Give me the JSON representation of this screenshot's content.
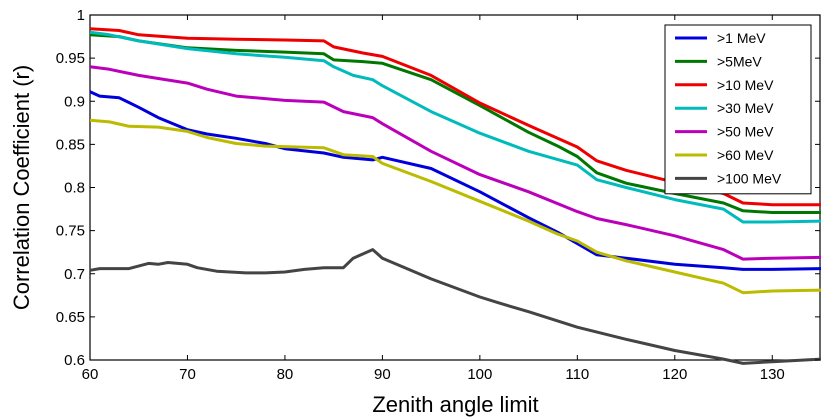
{
  "chart_data": {
    "type": "line",
    "title": "",
    "xlabel": "Zenith angle limit",
    "ylabel": "Correlation Coefficient (r)",
    "xlim": [
      60,
      135
    ],
    "ylim": [
      0.6,
      1
    ],
    "xticks": [
      60,
      70,
      80,
      90,
      100,
      110,
      120,
      130
    ],
    "yticks": [
      0.6,
      0.65,
      0.7,
      0.75,
      0.8,
      0.85,
      0.9,
      0.95,
      1
    ],
    "ytick_labels": [
      "0.6",
      "0.65",
      "0.7",
      "0.75",
      "0.8",
      "0.85",
      "0.9",
      "0.95",
      "1"
    ],
    "grid": false,
    "legend_position": "top-right",
    "series": [
      {
        "name": ">1 MeV",
        "color": "#0000dd",
        "points": [
          [
            60,
            0.911
          ],
          [
            61,
            0.906
          ],
          [
            63,
            0.904
          ],
          [
            65,
            0.893
          ],
          [
            67,
            0.881
          ],
          [
            70,
            0.867
          ],
          [
            72,
            0.862
          ],
          [
            75,
            0.857
          ],
          [
            78,
            0.851
          ],
          [
            80,
            0.845
          ],
          [
            84,
            0.84
          ],
          [
            86,
            0.835
          ],
          [
            89,
            0.832
          ],
          [
            90,
            0.835
          ],
          [
            95,
            0.822
          ],
          [
            100,
            0.795
          ],
          [
            105,
            0.765
          ],
          [
            108,
            0.748
          ],
          [
            112,
            0.722
          ],
          [
            115,
            0.718
          ],
          [
            120,
            0.711
          ],
          [
            125,
            0.707
          ],
          [
            127,
            0.705
          ],
          [
            130,
            0.705
          ],
          [
            135,
            0.706
          ]
        ]
      },
      {
        "name": ">5MeV",
        "color": "#007700",
        "points": [
          [
            60,
            0.977
          ],
          [
            63,
            0.975
          ],
          [
            65,
            0.97
          ],
          [
            70,
            0.962
          ],
          [
            75,
            0.959
          ],
          [
            80,
            0.957
          ],
          [
            84,
            0.955
          ],
          [
            85,
            0.948
          ],
          [
            88,
            0.946
          ],
          [
            90,
            0.944
          ],
          [
            95,
            0.925
          ],
          [
            100,
            0.895
          ],
          [
            105,
            0.864
          ],
          [
            108,
            0.848
          ],
          [
            110,
            0.836
          ],
          [
            112,
            0.817
          ],
          [
            115,
            0.805
          ],
          [
            120,
            0.793
          ],
          [
            125,
            0.782
          ],
          [
            127,
            0.773
          ],
          [
            130,
            0.771
          ],
          [
            135,
            0.771
          ]
        ]
      },
      {
        "name": ">10 MeV",
        "color": "#ee0000",
        "points": [
          [
            60,
            0.984
          ],
          [
            63,
            0.982
          ],
          [
            65,
            0.977
          ],
          [
            70,
            0.973
          ],
          [
            75,
            0.972
          ],
          [
            80,
            0.971
          ],
          [
            84,
            0.97
          ],
          [
            85,
            0.963
          ],
          [
            88,
            0.956
          ],
          [
            90,
            0.952
          ],
          [
            95,
            0.93
          ],
          [
            100,
            0.898
          ],
          [
            105,
            0.872
          ],
          [
            110,
            0.847
          ],
          [
            112,
            0.831
          ],
          [
            115,
            0.82
          ],
          [
            120,
            0.806
          ],
          [
            125,
            0.793
          ],
          [
            127,
            0.782
          ],
          [
            130,
            0.78
          ],
          [
            135,
            0.78
          ]
        ]
      },
      {
        "name": ">30 MeV",
        "color": "#00bbbb",
        "points": [
          [
            60,
            0.98
          ],
          [
            62,
            0.977
          ],
          [
            65,
            0.97
          ],
          [
            70,
            0.961
          ],
          [
            75,
            0.955
          ],
          [
            80,
            0.951
          ],
          [
            84,
            0.947
          ],
          [
            85,
            0.94
          ],
          [
            87,
            0.93
          ],
          [
            89,
            0.925
          ],
          [
            90,
            0.918
          ],
          [
            95,
            0.888
          ],
          [
            100,
            0.863
          ],
          [
            105,
            0.842
          ],
          [
            110,
            0.826
          ],
          [
            112,
            0.809
          ],
          [
            115,
            0.8
          ],
          [
            120,
            0.786
          ],
          [
            125,
            0.775
          ],
          [
            127,
            0.76
          ],
          [
            130,
            0.76
          ],
          [
            135,
            0.761
          ]
        ]
      },
      {
        "name": ">50 MeV",
        "color": "#bb00bb",
        "points": [
          [
            60,
            0.94
          ],
          [
            62,
            0.937
          ],
          [
            65,
            0.93
          ],
          [
            70,
            0.921
          ],
          [
            72,
            0.914
          ],
          [
            75,
            0.906
          ],
          [
            80,
            0.901
          ],
          [
            84,
            0.899
          ],
          [
            86,
            0.888
          ],
          [
            89,
            0.881
          ],
          [
            90,
            0.874
          ],
          [
            95,
            0.842
          ],
          [
            100,
            0.815
          ],
          [
            105,
            0.795
          ],
          [
            110,
            0.772
          ],
          [
            112,
            0.764
          ],
          [
            115,
            0.757
          ],
          [
            120,
            0.744
          ],
          [
            125,
            0.728
          ],
          [
            127,
            0.717
          ],
          [
            130,
            0.718
          ],
          [
            135,
            0.719
          ]
        ]
      },
      {
        "name": ">60 MeV",
        "color": "#bbbb00",
        "points": [
          [
            60,
            0.878
          ],
          [
            62,
            0.876
          ],
          [
            64,
            0.871
          ],
          [
            67,
            0.87
          ],
          [
            70,
            0.865
          ],
          [
            72,
            0.858
          ],
          [
            75,
            0.851
          ],
          [
            78,
            0.848
          ],
          [
            84,
            0.846
          ],
          [
            86,
            0.838
          ],
          [
            89,
            0.836
          ],
          [
            90,
            0.828
          ],
          [
            95,
            0.807
          ],
          [
            100,
            0.784
          ],
          [
            105,
            0.761
          ],
          [
            108,
            0.746
          ],
          [
            110,
            0.738
          ],
          [
            112,
            0.725
          ],
          [
            115,
            0.715
          ],
          [
            120,
            0.702
          ],
          [
            125,
            0.689
          ],
          [
            127,
            0.678
          ],
          [
            130,
            0.68
          ],
          [
            135,
            0.681
          ]
        ]
      },
      {
        "name": ">100 MeV",
        "color": "#444444",
        "points": [
          [
            60,
            0.704
          ],
          [
            61,
            0.706
          ],
          [
            64,
            0.706
          ],
          [
            66,
            0.712
          ],
          [
            67,
            0.711
          ],
          [
            68,
            0.713
          ],
          [
            70,
            0.711
          ],
          [
            71,
            0.707
          ],
          [
            73,
            0.703
          ],
          [
            76,
            0.701
          ],
          [
            78,
            0.701
          ],
          [
            80,
            0.702
          ],
          [
            82,
            0.705
          ],
          [
            84,
            0.707
          ],
          [
            86,
            0.707
          ],
          [
            87,
            0.718
          ],
          [
            89,
            0.728
          ],
          [
            90,
            0.718
          ],
          [
            95,
            0.694
          ],
          [
            100,
            0.673
          ],
          [
            102,
            0.666
          ],
          [
            105,
            0.656
          ],
          [
            110,
            0.638
          ],
          [
            115,
            0.624
          ],
          [
            120,
            0.611
          ],
          [
            125,
            0.601
          ],
          [
            127,
            0.596
          ],
          [
            130,
            0.598
          ],
          [
            135,
            0.601
          ]
        ]
      }
    ]
  }
}
